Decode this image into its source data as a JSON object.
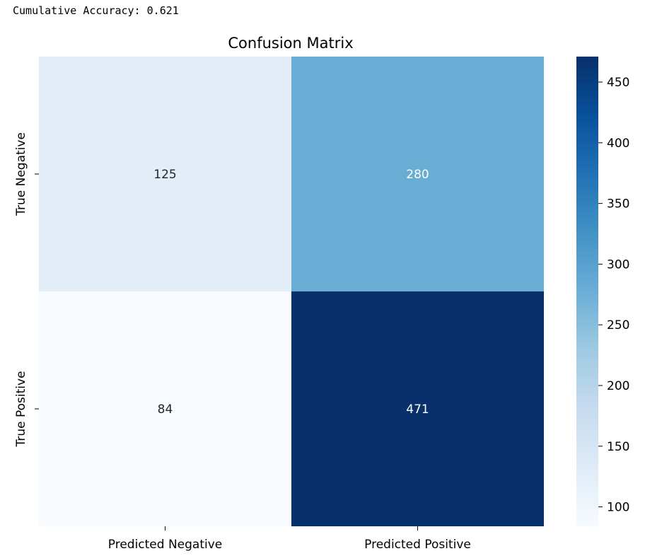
{
  "output": {
    "accuracy_line": "Cumulative Accuracy: 0.621"
  },
  "chart_data": {
    "type": "heatmap",
    "title": "Confusion Matrix",
    "xlabel": "",
    "ylabel": "",
    "x_categories": [
      "Predicted Negative",
      "Predicted Positive"
    ],
    "y_categories": [
      "True Negative",
      "True Positive"
    ],
    "values": [
      [
        125,
        280
      ],
      [
        84,
        471
      ]
    ],
    "annotations": true,
    "colormap": "Blues",
    "colorbar": {
      "min": 84,
      "max": 471,
      "ticks": [
        100,
        150,
        200,
        250,
        300,
        350,
        400,
        450
      ]
    },
    "grid": false
  }
}
